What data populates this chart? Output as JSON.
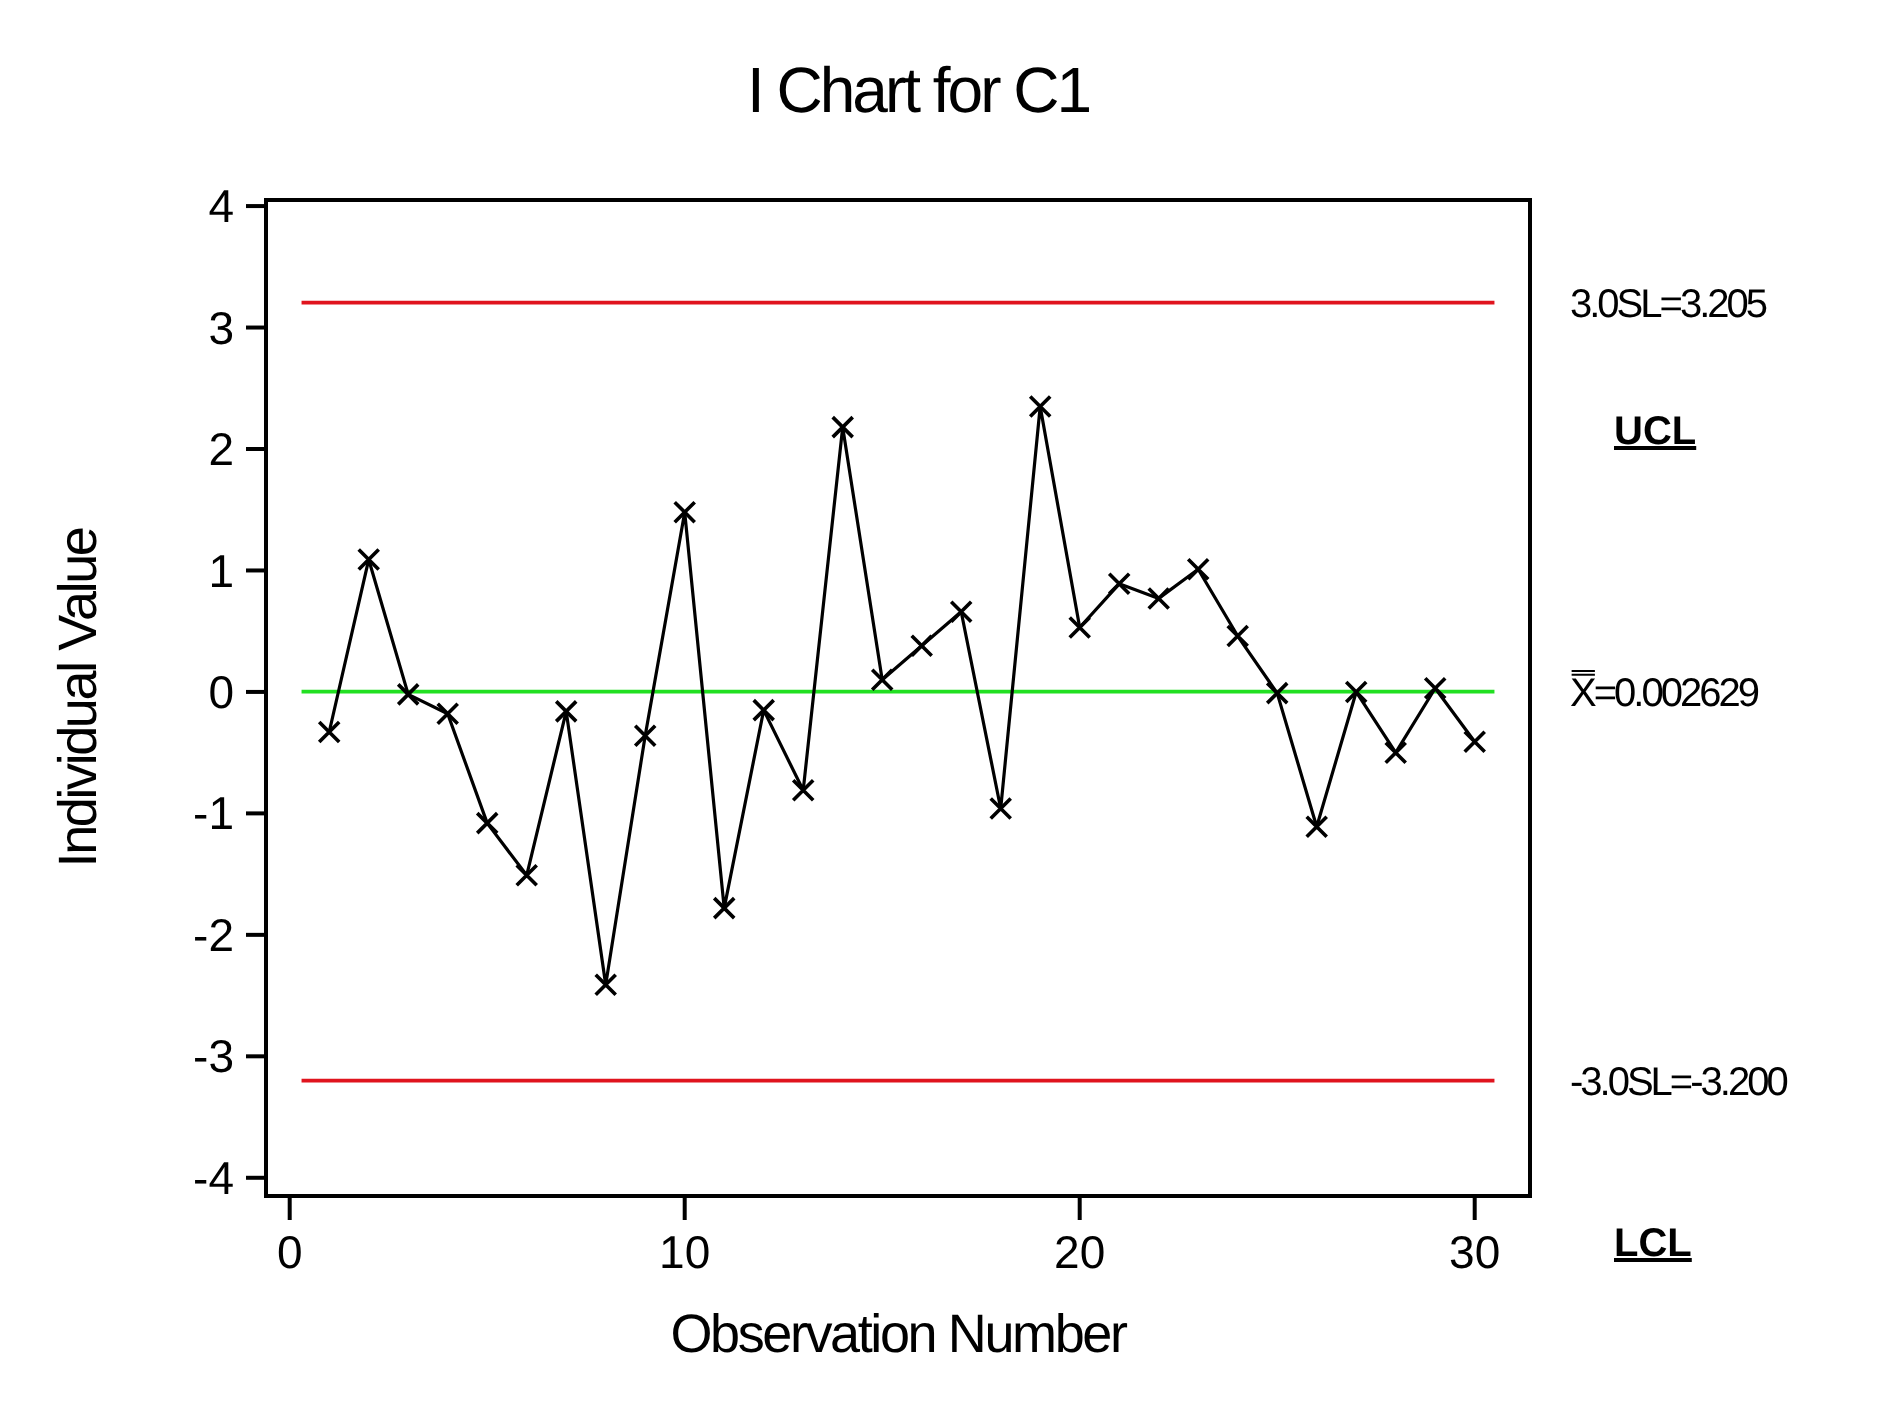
{
  "chart_data": {
    "type": "line",
    "title": "I Chart for C1",
    "xlabel": "Observation Number",
    "ylabel": "Individual Value",
    "x": [
      1,
      2,
      3,
      4,
      5,
      6,
      7,
      8,
      9,
      10,
      11,
      12,
      13,
      14,
      15,
      16,
      17,
      18,
      19,
      20,
      21,
      22,
      23,
      24,
      25,
      26,
      27,
      28,
      29,
      30
    ],
    "series": [
      {
        "color": "#000000",
        "values": [
          -0.33,
          1.09,
          -0.02,
          -0.18,
          -1.08,
          -1.51,
          -0.16,
          -2.41,
          -0.36,
          1.48,
          -1.78,
          -0.15,
          -0.81,
          2.18,
          0.1,
          0.38,
          0.66,
          -0.96,
          2.35,
          0.53,
          0.89,
          0.77,
          1.01,
          0.46,
          -0.01,
          -1.11,
          0,
          -0.5,
          0.03,
          -0.41
        ]
      }
    ],
    "xlim": [
      -0.6,
      31.4
    ],
    "xticks": [
      0,
      10,
      20,
      30
    ],
    "ylim": [
      -4.15,
      4.05
    ],
    "yticks": [
      -4,
      -3,
      -2,
      -1,
      0,
      1,
      2,
      3,
      4
    ],
    "ref_lines": [
      {
        "axis": "y",
        "value": 3.205,
        "label": "3.0SL=3.205",
        "color": "#e0141e"
      },
      {
        "axis": "y",
        "value": 0.002629,
        "label": "X̿=0.002629",
        "color": "#22e022"
      },
      {
        "axis": "y",
        "value": -3.2,
        "label": "-3.0SL=-3.200",
        "color": "#e0141e"
      }
    ],
    "annotations": [
      "UCL",
      "LCL"
    ],
    "marker": "cross",
    "line_style": "solid",
    "grid": false
  }
}
